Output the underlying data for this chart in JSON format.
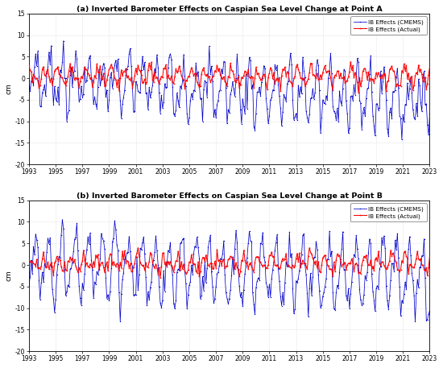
{
  "title_a": "(a) Inverted Barometer Effects on Caspian Sea Level Change at Point A",
  "title_b": "(b) Inverted Barometer Effects on Caspian Sea Level Change at Point B",
  "ylabel": "cm",
  "xlim": [
    1993,
    2023
  ],
  "ylim": [
    -20,
    15
  ],
  "xticks": [
    1993,
    1995,
    1997,
    1999,
    2001,
    2003,
    2005,
    2007,
    2009,
    2011,
    2013,
    2015,
    2017,
    2019,
    2021,
    2023
  ],
  "yticks": [
    -20,
    -15,
    -10,
    -5,
    0,
    5,
    10,
    15
  ],
  "legend_labels": [
    "IB Effects (CMEMS)",
    "IB Effects (Actual)"
  ],
  "cmems_color": "#0000CC",
  "actual_color": "#FF0000",
  "background_color": "#FFFFFF",
  "n_months": 361,
  "figsize": [
    5.5,
    4.57
  ],
  "dpi": 100
}
